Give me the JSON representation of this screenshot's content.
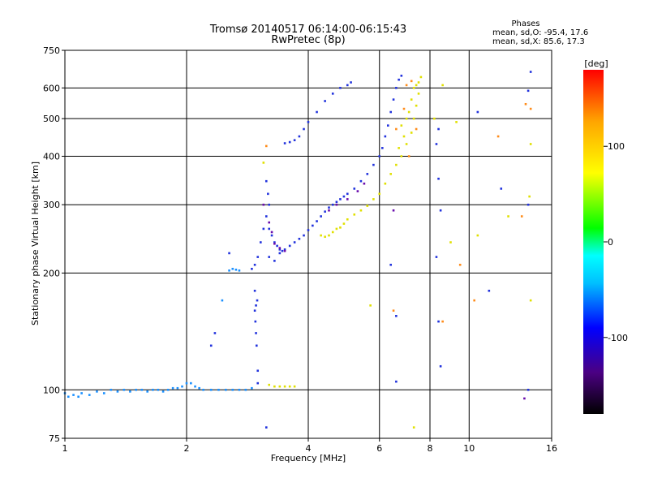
{
  "chart_data": {
    "type": "scatter",
    "title": "Tromsø 20140517 06:14:00-06:15:43",
    "subtitle": "RwPretec (8p)",
    "phases_block": {
      "heading": "Phases",
      "line_o": "mean, sd,O: -95.4, 17.6",
      "line_x": "mean, sd,X:  85.6, 17.3"
    },
    "xlabel": "Frequency [MHz]",
    "ylabel": "Stationary phase Virtual Height [km]",
    "x_scale": "log",
    "y_scale": "log",
    "xlim": [
      1,
      16
    ],
    "ylim": [
      75,
      750
    ],
    "x_ticks": [
      {
        "value": 1,
        "label": "1"
      },
      {
        "value": 2,
        "label": "2"
      },
      {
        "value": 4,
        "label": "4"
      },
      {
        "value": 6,
        "label": "6"
      },
      {
        "value": 8,
        "label": "8"
      },
      {
        "value": 10,
        "label": "10"
      },
      {
        "value": 16,
        "label": "16"
      }
    ],
    "y_ticks": [
      {
        "value": 75,
        "label": "75"
      },
      {
        "value": 100,
        "label": "100"
      },
      {
        "value": 200,
        "label": "200"
      },
      {
        "value": 300,
        "label": "300"
      },
      {
        "value": 400,
        "label": "400"
      },
      {
        "value": 500,
        "label": "500"
      },
      {
        "value": 600,
        "label": "600"
      },
      {
        "value": 750,
        "label": "750"
      }
    ],
    "grid_x": [
      2,
      4,
      6,
      8,
      10
    ],
    "grid_y": [
      100,
      200,
      300,
      400,
      500,
      600
    ],
    "colorbar": {
      "label": "[deg]",
      "range": [
        -180,
        180
      ],
      "ticks": [
        {
          "value": 100,
          "label": "100"
        },
        {
          "value": 0,
          "label": "0"
        },
        {
          "value": -100,
          "label": "-100"
        }
      ],
      "colors": [
        "#000000",
        "#4b0082",
        "#0000ff",
        "#00bfff",
        "#00ffff",
        "#00ff00",
        "#ffff00",
        "#ffa500",
        "#ff0000"
      ]
    },
    "series": [
      {
        "color": "#1a90ff",
        "points": [
          [
            1.0,
            98
          ],
          [
            1.02,
            96
          ],
          [
            1.05,
            97
          ],
          [
            1.08,
            96
          ],
          [
            1.1,
            98
          ],
          [
            1.15,
            97
          ],
          [
            1.2,
            99
          ],
          [
            1.25,
            98
          ],
          [
            1.3,
            100
          ],
          [
            1.35,
            99
          ],
          [
            1.4,
            100
          ],
          [
            1.45,
            99
          ],
          [
            1.5,
            100
          ],
          [
            1.55,
            100
          ],
          [
            1.6,
            99
          ],
          [
            1.65,
            100
          ],
          [
            1.7,
            100
          ],
          [
            1.75,
            99
          ],
          [
            1.8,
            100
          ],
          [
            1.85,
            101
          ],
          [
            1.9,
            101
          ],
          [
            1.95,
            102
          ],
          [
            2.0,
            104
          ],
          [
            2.05,
            104
          ],
          [
            2.1,
            102
          ],
          [
            2.15,
            101
          ],
          [
            2.2,
            100
          ],
          [
            2.3,
            100
          ],
          [
            2.4,
            100
          ],
          [
            2.5,
            100
          ],
          [
            2.6,
            100
          ],
          [
            2.7,
            100
          ],
          [
            2.8,
            100
          ],
          [
            2.9,
            101
          ],
          [
            2.55,
            203
          ],
          [
            2.6,
            205
          ],
          [
            2.65,
            204
          ],
          [
            2.7,
            203
          ],
          [
            2.45,
            170
          ]
        ]
      },
      {
        "color": "#2233dd",
        "points": [
          [
            3.0,
            104
          ],
          [
            3.0,
            112
          ],
          [
            2.98,
            130
          ],
          [
            2.97,
            140
          ],
          [
            2.96,
            150
          ],
          [
            2.95,
            160
          ],
          [
            2.97,
            165
          ],
          [
            2.99,
            170
          ],
          [
            2.95,
            180
          ],
          [
            2.9,
            205
          ],
          [
            2.95,
            210
          ],
          [
            3.0,
            220
          ],
          [
            3.05,
            240
          ],
          [
            3.1,
            260
          ],
          [
            3.15,
            280
          ],
          [
            3.2,
            300
          ],
          [
            3.18,
            320
          ],
          [
            3.15,
            345
          ],
          [
            3.2,
            260
          ],
          [
            3.25,
            250
          ],
          [
            3.3,
            240
          ],
          [
            3.35,
            235
          ],
          [
            3.4,
            230
          ],
          [
            3.45,
            228
          ],
          [
            3.5,
            230
          ],
          [
            3.6,
            235
          ],
          [
            3.7,
            240
          ],
          [
            3.8,
            245
          ],
          [
            3.9,
            250
          ],
          [
            4.0,
            258
          ],
          [
            4.1,
            265
          ],
          [
            4.2,
            272
          ],
          [
            4.3,
            280
          ],
          [
            4.4,
            288
          ],
          [
            4.5,
            295
          ],
          [
            4.6,
            300
          ],
          [
            4.7,
            305
          ],
          [
            4.8,
            310
          ],
          [
            4.9,
            315
          ],
          [
            5.0,
            320
          ],
          [
            5.2,
            330
          ],
          [
            5.4,
            345
          ],
          [
            5.6,
            360
          ],
          [
            5.8,
            380
          ],
          [
            6.0,
            400
          ],
          [
            6.1,
            420
          ],
          [
            6.2,
            450
          ],
          [
            6.3,
            480
          ],
          [
            6.4,
            520
          ],
          [
            6.5,
            560
          ],
          [
            6.6,
            600
          ],
          [
            6.7,
            630
          ],
          [
            6.8,
            645
          ],
          [
            3.5,
            432
          ],
          [
            3.6,
            435
          ],
          [
            3.7,
            440
          ],
          [
            3.8,
            450
          ],
          [
            3.9,
            470
          ],
          [
            4.0,
            490
          ],
          [
            4.2,
            520
          ],
          [
            4.4,
            555
          ],
          [
            4.6,
            580
          ],
          [
            4.8,
            600
          ],
          [
            5.0,
            610
          ],
          [
            5.1,
            620
          ],
          [
            3.2,
            220
          ],
          [
            3.3,
            215
          ],
          [
            3.4,
            225
          ],
          [
            2.3,
            130
          ],
          [
            2.35,
            140
          ],
          [
            2.55,
            225
          ],
          [
            8.3,
            430
          ],
          [
            8.4,
            350
          ],
          [
            8.5,
            290
          ],
          [
            8.3,
            220
          ],
          [
            8.4,
            150
          ],
          [
            8.5,
            115
          ],
          [
            8.4,
            470
          ],
          [
            10.5,
            520
          ],
          [
            11.2,
            180
          ],
          [
            12.0,
            330
          ],
          [
            14.0,
            590
          ],
          [
            14.2,
            660
          ],
          [
            14.0,
            300
          ],
          [
            14.0,
            100
          ],
          [
            3.15,
            80
          ],
          [
            6.4,
            210
          ],
          [
            6.6,
            105
          ],
          [
            6.6,
            155
          ]
        ]
      },
      {
        "color": "#e0e000",
        "points": [
          [
            3.2,
            103
          ],
          [
            3.3,
            102
          ],
          [
            3.4,
            102
          ],
          [
            3.5,
            102
          ],
          [
            3.6,
            102
          ],
          [
            3.7,
            102
          ],
          [
            4.3,
            250
          ],
          [
            4.4,
            248
          ],
          [
            4.5,
            250
          ],
          [
            4.6,
            255
          ],
          [
            4.7,
            260
          ],
          [
            4.8,
            262
          ],
          [
            4.9,
            268
          ],
          [
            5.0,
            275
          ],
          [
            5.2,
            283
          ],
          [
            5.4,
            290
          ],
          [
            5.6,
            298
          ],
          [
            5.8,
            310
          ],
          [
            6.0,
            320
          ],
          [
            6.2,
            340
          ],
          [
            6.4,
            360
          ],
          [
            6.6,
            380
          ],
          [
            6.8,
            400
          ],
          [
            7.0,
            430
          ],
          [
            7.2,
            460
          ],
          [
            7.3,
            500
          ],
          [
            7.4,
            540
          ],
          [
            7.5,
            580
          ],
          [
            7.5,
            620
          ],
          [
            7.6,
            640
          ],
          [
            7.0,
            500
          ],
          [
            7.1,
            520
          ],
          [
            7.2,
            560
          ],
          [
            6.9,
            450
          ],
          [
            6.8,
            480
          ],
          [
            6.7,
            420
          ],
          [
            7.3,
            600
          ],
          [
            7.4,
            610
          ],
          [
            3.1,
            385
          ],
          [
            5.7,
            165
          ],
          [
            7.3,
            80
          ],
          [
            9.0,
            240
          ],
          [
            10.5,
            250
          ],
          [
            12.5,
            280
          ],
          [
            14.2,
            430
          ],
          [
            14.2,
            170
          ],
          [
            14.1,
            315
          ],
          [
            8.2,
            500
          ],
          [
            8.6,
            610
          ],
          [
            9.3,
            490
          ]
        ]
      },
      {
        "color": "#ff8c1a",
        "points": [
          [
            3.15,
            425
          ],
          [
            7.0,
            610
          ],
          [
            7.2,
            625
          ],
          [
            7.4,
            470
          ],
          [
            6.9,
            530
          ],
          [
            7.1,
            400
          ],
          [
            6.6,
            470
          ],
          [
            8.6,
            150
          ],
          [
            9.5,
            210
          ],
          [
            10.3,
            170
          ],
          [
            11.8,
            450
          ],
          [
            13.5,
            280
          ],
          [
            13.8,
            545
          ],
          [
            14.2,
            530
          ],
          [
            6.5,
            160
          ]
        ]
      },
      {
        "color": "#6a0dad",
        "points": [
          [
            3.3,
            238
          ],
          [
            3.4,
            232
          ],
          [
            3.5,
            228
          ],
          [
            3.2,
            270
          ],
          [
            3.25,
            255
          ],
          [
            3.1,
            300
          ],
          [
            4.5,
            290
          ],
          [
            4.7,
            300
          ],
          [
            5.0,
            310
          ],
          [
            5.3,
            325
          ],
          [
            5.5,
            340
          ],
          [
            13.7,
            95
          ],
          [
            6.5,
            290
          ]
        ]
      }
    ]
  }
}
